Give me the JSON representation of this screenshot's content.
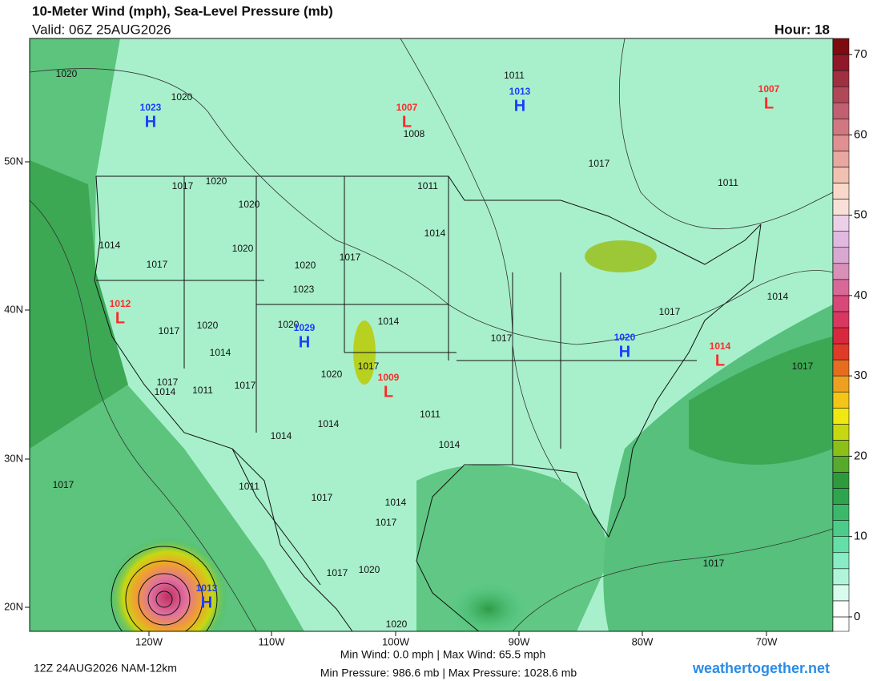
{
  "header": {
    "title": "10-Meter Wind (mph), Sea-Level Pressure (mb)",
    "valid": "Valid: 06Z 25AUG2026",
    "hour": "Hour: 18"
  },
  "map": {
    "lon_labels": [
      "120W",
      "110W",
      "100W",
      "90W",
      "80W",
      "70W"
    ],
    "lat_labels": [
      "50N",
      "40N",
      "30N",
      "20N"
    ],
    "pressure_centers": [
      {
        "type": "H",
        "value": "1023",
        "color": "#1a3cff"
      },
      {
        "type": "L",
        "value": "1007",
        "color": "#ff2a2a"
      },
      {
        "type": "H",
        "value": "1013",
        "color": "#1a3cff"
      },
      {
        "type": "L",
        "value": "1007",
        "color": "#ff2a2a"
      },
      {
        "type": "L",
        "value": "1012",
        "color": "#ff2a2a"
      },
      {
        "type": "H",
        "value": "1029",
        "color": "#1a3cff"
      },
      {
        "type": "H",
        "value": "1020",
        "color": "#1a3cff"
      },
      {
        "type": "L",
        "value": "1014",
        "color": "#ff2a2a"
      },
      {
        "type": "L",
        "value": "1009",
        "color": "#ff2a2a"
      },
      {
        "type": "H",
        "value": "1013",
        "color": "#1a3cff"
      }
    ],
    "isobar_labels": [
      1020,
      1020,
      1011,
      1008,
      1017,
      1011,
      1017,
      1020,
      1020,
      1011,
      1014,
      1014,
      1017,
      1020,
      1020,
      1017,
      1023,
      1014,
      1017,
      1014,
      1017,
      1020,
      1020,
      1017,
      1014,
      1017,
      1020,
      1017,
      1017,
      1014,
      1011,
      1017,
      1011,
      1014,
      1014,
      1014,
      1017,
      1011,
      1017,
      1014,
      1017,
      1017,
      1017,
      1020,
      1020
    ]
  },
  "colorbar": {
    "lim": [
      -1.8,
      72
    ],
    "step": 2,
    "ticks": [
      0,
      10,
      20,
      30,
      40,
      50,
      60,
      70
    ],
    "colors": [
      "#ffffff",
      "#ffffff",
      "#d8fbee",
      "#b0f5da",
      "#88ecc4",
      "#64dfa8",
      "#4ccc88",
      "#3cb86a",
      "#2ea44e",
      "#2f9a3c",
      "#58aa2a",
      "#8cc018",
      "#c8d810",
      "#f0e810",
      "#f4c418",
      "#f0a020",
      "#e86c20",
      "#e03a28",
      "#d82840",
      "#d83860",
      "#d84878",
      "#d86898",
      "#d890b8",
      "#d8a8d0",
      "#e0b8e0",
      "#ecd0e8",
      "#f8e0d8",
      "#f8d8c8",
      "#f0c0b0",
      "#e8a8a0",
      "#e09090",
      "#d07880",
      "#c06070",
      "#b04858",
      "#a03040",
      "#901828",
      "#7c0c10"
    ]
  },
  "footer": {
    "run": "12Z 24AUG2026 NAM-12km",
    "wind": "Min Wind:  0.0 mph | Max Wind:  65.5 mph",
    "pressure": "Min Pressure: 986.6 mb | Max Pressure: 1028.6 mb",
    "site": "weathertogether.net"
  }
}
